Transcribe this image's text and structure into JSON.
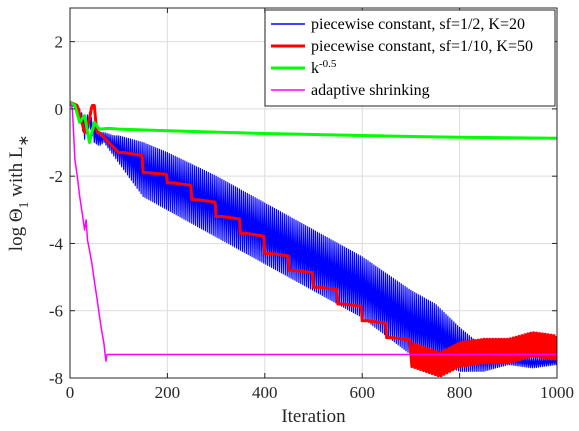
{
  "chart_data": {
    "type": "line",
    "xlabel": "Iteration",
    "ylabel": "log Θ₁ with L∗",
    "ylabel_parts": {
      "base": "log Θ",
      "sub": "1",
      "mid": " with L",
      "sup": "∗"
    },
    "xlim": [
      0,
      1000
    ],
    "ylim": [
      -8,
      3
    ],
    "xticks": [
      "0",
      "200",
      "400",
      "600",
      "800",
      "1000"
    ],
    "yticks": [
      "-8",
      "-6",
      "-4",
      "-2",
      "0",
      "2"
    ],
    "grid": true,
    "legend_position": "top-right",
    "series": [
      {
        "name": "piecewise constant, sf=1/2, K=20",
        "color": "#0000ff",
        "style": "oscillating",
        "x": [
          0,
          10,
          20,
          30,
          40,
          50,
          60,
          70,
          80,
          90,
          100,
          150,
          200,
          300,
          400,
          500,
          600,
          700,
          750,
          800,
          850,
          900,
          950,
          1000
        ],
        "upper": [
          0.2,
          0.1,
          0.0,
          -0.3,
          -0.1,
          -0.5,
          -0.7,
          -0.7,
          -0.75,
          -0.8,
          -0.8,
          -1.0,
          -1.3,
          -2.0,
          -2.8,
          -3.6,
          -4.4,
          -5.4,
          -5.8,
          -6.5,
          -7.1,
          -7.3,
          -7.4,
          -7.4
        ],
        "lower": [
          0.2,
          0.0,
          -0.3,
          -0.9,
          -0.5,
          -1.0,
          -1.1,
          -1.0,
          -1.2,
          -1.4,
          -1.6,
          -2.6,
          -3.0,
          -3.8,
          -4.6,
          -5.4,
          -6.2,
          -7.3,
          -7.5,
          -7.8,
          -7.8,
          -7.6,
          -7.7,
          -7.6
        ]
      },
      {
        "name": "piecewise constant, sf=1/10, K=50",
        "color": "#ff0000",
        "style": "steps",
        "x": [
          0,
          15,
          30,
          40,
          45,
          50,
          55,
          60,
          100,
          150,
          200,
          250,
          300,
          350,
          400,
          450,
          500,
          550,
          600,
          650,
          700,
          720,
          760,
          800,
          850,
          900,
          950,
          1000
        ],
        "y": [
          0.2,
          0.1,
          -0.7,
          -0.3,
          0.1,
          0.1,
          -0.7,
          -0.7,
          -1.3,
          -1.9,
          -2.2,
          -2.7,
          -3.2,
          -3.7,
          -4.3,
          -4.8,
          -5.3,
          -5.8,
          -6.3,
          -6.8,
          -7.3,
          -7.4,
          -7.6,
          -7.3,
          -7.2,
          -7.2,
          -7.0,
          -7.1
        ]
      },
      {
        "name": "k^-0.5",
        "color": "#00ff00",
        "style": "line",
        "x": [
          0,
          10,
          20,
          30,
          40,
          50,
          60,
          80,
          100,
          200,
          300,
          400,
          500,
          600,
          700,
          800,
          900,
          1000
        ],
        "y": [
          0.2,
          0.1,
          -0.4,
          -0.2,
          -1.0,
          -0.4,
          -0.6,
          -0.58,
          -0.6,
          -0.65,
          -0.69,
          -0.73,
          -0.76,
          -0.79,
          -0.82,
          -0.84,
          -0.86,
          -0.87
        ]
      },
      {
        "name": "adaptive shrinking",
        "color": "#ff00ff",
        "style": "line",
        "x": [
          0,
          5,
          10,
          15,
          20,
          25,
          30,
          33,
          36,
          40,
          45,
          50,
          55,
          60,
          65,
          70,
          72,
          74,
          76,
          80,
          100,
          200,
          400,
          600,
          800,
          1000
        ],
        "y": [
          0.2,
          0.0,
          -1.5,
          -2.0,
          -2.6,
          -3.1,
          -3.6,
          -3.3,
          -3.9,
          -4.2,
          -4.6,
          -5.1,
          -5.6,
          -6.1,
          -6.6,
          -7.0,
          -7.3,
          -7.5,
          -7.3,
          -7.3,
          -7.3,
          -7.3,
          -7.3,
          -7.3,
          -7.3,
          -7.3
        ]
      }
    ]
  }
}
